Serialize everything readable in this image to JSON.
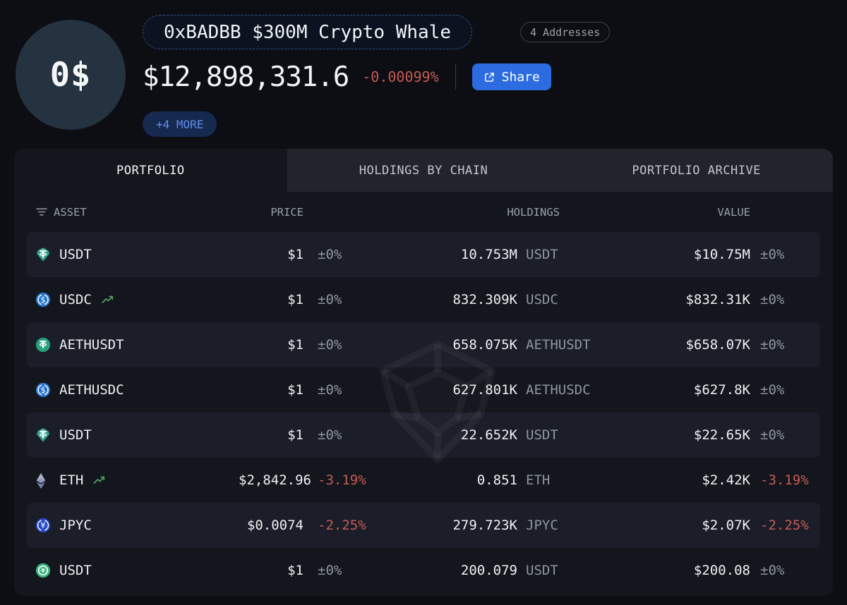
{
  "header": {
    "avatar_text": "0$",
    "title": "0xBADBB $300M Crypto Whale",
    "addresses_badge": "4 Addresses",
    "total_value": "$12,898,331.6",
    "total_change": "-0.00099%",
    "share_label": "Share",
    "more_label": "+4 MORE"
  },
  "tabs": [
    {
      "label": "PORTFOLIO",
      "active": true
    },
    {
      "label": "HOLDINGS BY CHAIN",
      "active": false
    },
    {
      "label": "PORTFOLIO ARCHIVE",
      "active": false
    }
  ],
  "table": {
    "columns": {
      "asset": "ASSET",
      "price": "PRICE",
      "holdings": "HOLDINGS",
      "value": "VALUE"
    },
    "rows": [
      {
        "label": "USDT",
        "icon": "tether-shield",
        "trend": false,
        "price": "$1",
        "price_change": "±0%",
        "price_dir": "flat",
        "holdings": "10.753M",
        "unit": "USDT",
        "value": "$10.75M",
        "value_change": "±0%",
        "value_dir": "flat",
        "highlight": true
      },
      {
        "label": "USDC",
        "icon": "usdc-circle",
        "trend": true,
        "price": "$1",
        "price_change": "±0%",
        "price_dir": "flat",
        "holdings": "832.309K",
        "unit": "USDC",
        "value": "$832.31K",
        "value_change": "±0%",
        "value_dir": "flat",
        "highlight": false
      },
      {
        "label": "AETHUSDT",
        "icon": "tether-circle",
        "trend": false,
        "price": "$1",
        "price_change": "±0%",
        "price_dir": "flat",
        "holdings": "658.075K",
        "unit": "AETHUSDT",
        "value": "$658.07K",
        "value_change": "±0%",
        "value_dir": "flat",
        "highlight": true
      },
      {
        "label": "AETHUSDC",
        "icon": "usdc-circle",
        "trend": false,
        "price": "$1",
        "price_change": "±0%",
        "price_dir": "flat",
        "holdings": "627.801K",
        "unit": "AETHUSDC",
        "value": "$627.8K",
        "value_change": "±0%",
        "value_dir": "flat",
        "highlight": false
      },
      {
        "label": "USDT",
        "icon": "tether-shield",
        "trend": false,
        "price": "$1",
        "price_change": "±0%",
        "price_dir": "flat",
        "holdings": "22.652K",
        "unit": "USDT",
        "value": "$22.65K",
        "value_change": "±0%",
        "value_dir": "flat",
        "highlight": true
      },
      {
        "label": "ETH",
        "icon": "eth-diamond",
        "trend": true,
        "price": "$2,842.96",
        "price_change": "-3.19%",
        "price_dir": "down",
        "holdings": "0.851",
        "unit": "ETH",
        "value": "$2.42K",
        "value_change": "-3.19%",
        "value_dir": "down",
        "highlight": false
      },
      {
        "label": "JPYC",
        "icon": "jpyc-circle",
        "trend": false,
        "price": "$0.0074",
        "price_change": "-2.25%",
        "price_dir": "down",
        "holdings": "279.723K",
        "unit": "JPYC",
        "value": "$2.07K",
        "value_change": "-2.25%",
        "value_dir": "down",
        "highlight": true
      },
      {
        "label": "USDT",
        "icon": "tether-ring",
        "trend": false,
        "price": "$1",
        "price_change": "±0%",
        "price_dir": "flat",
        "holdings": "200.079",
        "unit": "USDT",
        "value": "$200.08",
        "value_change": "±0%",
        "value_dir": "flat",
        "highlight": false
      }
    ]
  },
  "colors": {
    "page_bg": "#0c0e13",
    "card_bg": "#14161e",
    "row_highlight": "#1b1e28",
    "tab_inactive_bg": "#22242b",
    "accent_blue": "#2c6ce0",
    "link_blue": "#5d8ee9",
    "negative_red": "#c75a54",
    "positive_green": "#4f9e64",
    "muted_gray": "#99a0a9",
    "tether_teal": "#2e9d87",
    "tether_green": "#26a17b",
    "usdc_blue": "#2775ca",
    "jpyc_blue": "#2848c8"
  }
}
